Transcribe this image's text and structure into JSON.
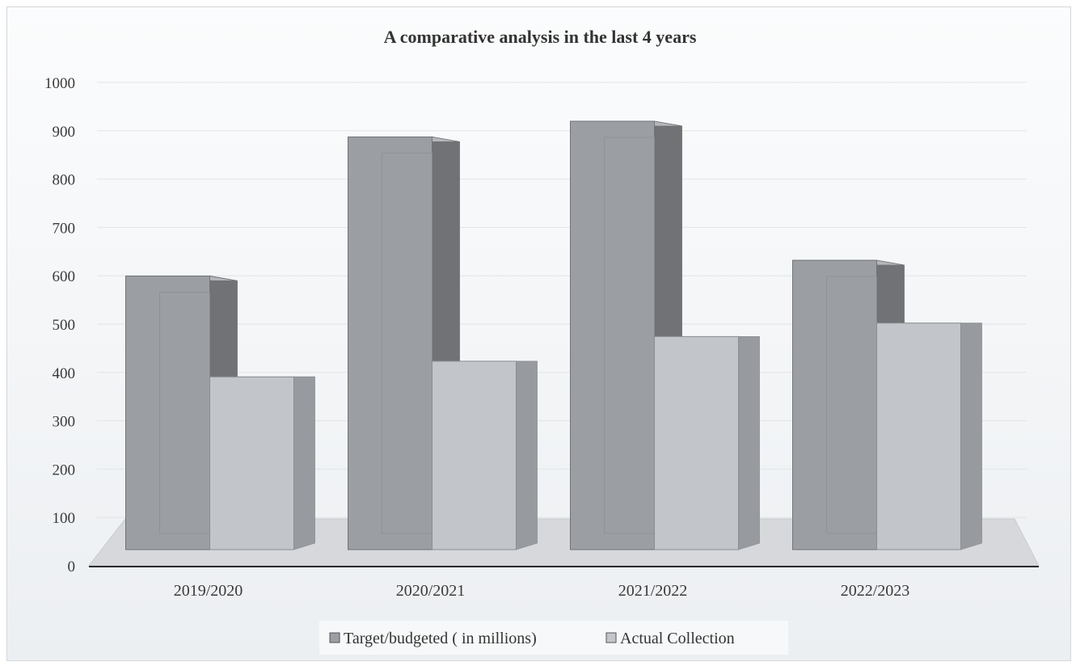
{
  "chart_data": {
    "type": "bar",
    "title": "A comparative analysis in the last 4 years",
    "categories": [
      "2019/2020",
      "2020/2021",
      "2021/2022",
      "2022/2023"
    ],
    "series": [
      {
        "name": "Target/budgeted ( in millions)",
        "values": [
          610,
          920,
          955,
          645
        ],
        "color": "#9b9ea3"
      },
      {
        "name": "Actual Collection",
        "values": [
          385,
          420,
          475,
          505
        ],
        "color": "#c2c5ca"
      }
    ],
    "ylim": [
      0,
      1000
    ],
    "yticks": [
      "0",
      "100",
      "200",
      "300",
      "400",
      "500",
      "600",
      "700",
      "800",
      "900",
      "1000"
    ],
    "grid": true,
    "legend": "bottom"
  }
}
